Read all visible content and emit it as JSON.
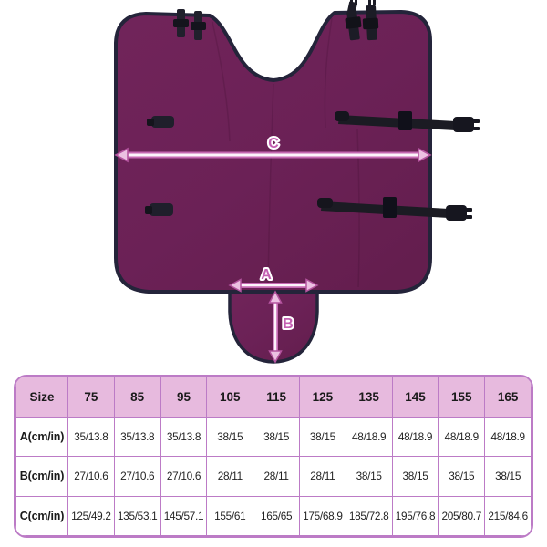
{
  "diagram": {
    "type": "product-dimension-diagram",
    "labels": {
      "a": "A",
      "b": "B",
      "c": "C"
    },
    "colors": {
      "fabric": "#6b2156",
      "trim": "#24243a",
      "straps": "#1b1b23",
      "arrow_casing": "#c568b2",
      "arrow_core": "#fdf4fb",
      "label_text": "#c45fb1"
    }
  },
  "size_table": {
    "header": [
      "Size",
      "75",
      "85",
      "95",
      "105",
      "115",
      "125",
      "135",
      "145",
      "155",
      "165"
    ],
    "rows": [
      {
        "label": "A(cm/in)",
        "values": [
          "35/13.8",
          "35/13.8",
          "35/13.8",
          "38/15",
          "38/15",
          "38/15",
          "48/18.9",
          "48/18.9",
          "48/18.9",
          "48/18.9"
        ]
      },
      {
        "label": "B(cm/in)",
        "values": [
          "27/10.6",
          "27/10.6",
          "27/10.6",
          "28/11",
          "28/11",
          "28/11",
          "38/15",
          "38/15",
          "38/15",
          "38/15"
        ]
      },
      {
        "label": "C(cm/in)",
        "values": [
          "125/49.2",
          "135/53.1",
          "145/57.1",
          "155/61",
          "165/65",
          "175/68.9",
          "185/72.8",
          "195/76.8",
          "205/80.7",
          "215/84.6"
        ]
      }
    ],
    "colors": {
      "header_bg": "#e7bade",
      "border": "#bc7bc6",
      "cell_bg": "#ffffff",
      "text": "#1a1a1a"
    }
  }
}
